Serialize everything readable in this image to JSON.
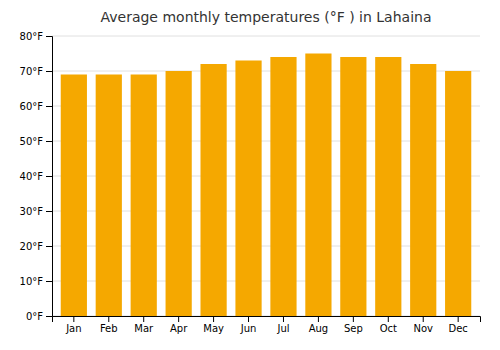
{
  "chart_data": {
    "type": "bar",
    "title": "Average monthly temperatures (°F ) in Lahaina",
    "categories": [
      "Jan",
      "Feb",
      "Mar",
      "Apr",
      "May",
      "Jun",
      "Jul",
      "Aug",
      "Sep",
      "Oct",
      "Nov",
      "Dec"
    ],
    "values": [
      69,
      69,
      69,
      70,
      72,
      73,
      74,
      75,
      74,
      74,
      72,
      70
    ],
    "color": "#F5A800",
    "ylim": [
      0,
      80
    ],
    "yticks": [
      {
        "value": 0,
        "label": "0°F"
      },
      {
        "value": 10,
        "label": "10°F"
      },
      {
        "value": 20,
        "label": "20°F"
      },
      {
        "value": 30,
        "label": "30°F"
      },
      {
        "value": 40,
        "label": "40°F"
      },
      {
        "value": 50,
        "label": "50°F"
      },
      {
        "value": 60,
        "label": "60°F"
      },
      {
        "value": 70,
        "label": "70°F"
      },
      {
        "value": 80,
        "label": "80°F"
      }
    ],
    "grid": true
  }
}
